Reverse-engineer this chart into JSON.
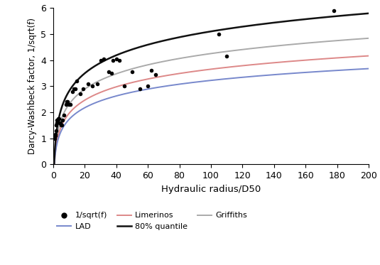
{
  "scatter_x": [
    1.0,
    1.2,
    1.5,
    1.8,
    2.0,
    2.2,
    2.5,
    2.8,
    3.0,
    3.5,
    4.0,
    4.5,
    5.0,
    5.5,
    6.0,
    7.0,
    8.0,
    8.5,
    9.0,
    10.0,
    11.0,
    12.0,
    13.0,
    14.0,
    15.0,
    17.0,
    19.0,
    22.0,
    25.0,
    28.0,
    30.0,
    32.0,
    35.0,
    37.0,
    38.0,
    40.0,
    42.0,
    45.0,
    50.0,
    55.0,
    60.0,
    62.0,
    65.0,
    105.0,
    110.0,
    178.0
  ],
  "scatter_y": [
    1.0,
    1.1,
    1.15,
    1.3,
    1.5,
    1.6,
    1.7,
    1.7,
    1.75,
    1.75,
    1.6,
    1.6,
    1.5,
    1.5,
    1.7,
    1.9,
    2.3,
    2.4,
    2.4,
    2.3,
    2.3,
    2.8,
    2.9,
    2.9,
    3.2,
    2.7,
    2.9,
    3.1,
    3.0,
    3.1,
    4.0,
    4.05,
    3.55,
    3.5,
    4.0,
    4.05,
    4.0,
    3.0,
    3.55,
    2.9,
    3.0,
    3.6,
    3.45,
    5.0,
    4.15,
    5.9
  ],
  "A_80pct": 2.3,
  "B_80pct": 0.5,
  "A_LAD": 1.5,
  "B_LAD": 0.22,
  "A_Limerinos": 1.7,
  "B_Limerinos": 0.25,
  "A_Griffiths": 1.95,
  "B_Griffiths": 0.35,
  "color_80pct": "#111111",
  "color_LAD": "#7788cc",
  "color_Limerinos": "#dd8888",
  "color_Griffiths": "#aaaaaa",
  "xlabel": "Hydraulic radius/D50",
  "ylabel": "Darcy-Washbeck factor, 1/sqrt(f)",
  "xlim": [
    0,
    200
  ],
  "ylim": [
    0,
    6
  ],
  "xticks": [
    0,
    20,
    40,
    60,
    80,
    100,
    120,
    140,
    160,
    180,
    200
  ],
  "yticks": [
    0,
    1,
    2,
    3,
    4,
    5,
    6
  ]
}
